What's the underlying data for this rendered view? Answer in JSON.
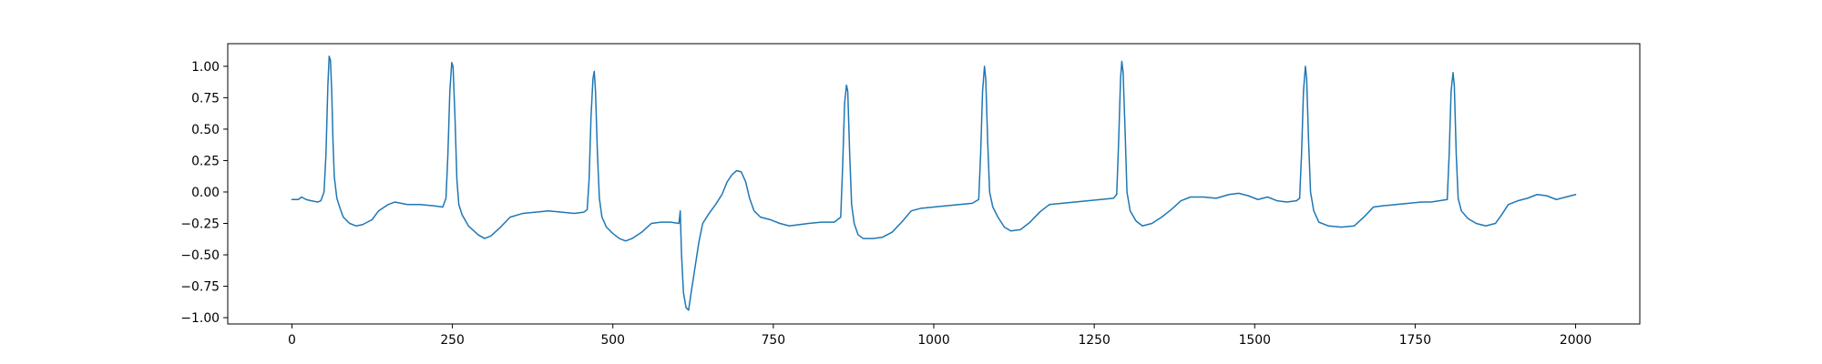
{
  "chart_data": {
    "type": "line",
    "title": "",
    "xlabel": "",
    "ylabel": "",
    "xlim": [
      -100,
      2100
    ],
    "ylim": [
      -1.05,
      1.18
    ],
    "grid": false,
    "legend": "none",
    "x_ticks": [
      0,
      250,
      500,
      750,
      1000,
      1250,
      1500,
      1750,
      2000
    ],
    "x_tick_labels": [
      "0",
      "250",
      "500",
      "750",
      "1000",
      "1250",
      "1500",
      "1750",
      "2000"
    ],
    "y_ticks": [
      1.0,
      0.75,
      0.5,
      0.25,
      0.0,
      -0.25,
      -0.5,
      -0.75,
      -1.0
    ],
    "y_tick_labels": [
      "1.00",
      "0.75",
      "0.50",
      "0.25",
      "0.00",
      "−0.25",
      "−0.50",
      "−0.75",
      "−1.00"
    ],
    "series": [
      {
        "color": "#1f77b4",
        "points": [
          [
            0,
            -0.06
          ],
          [
            10,
            -0.06
          ],
          [
            15,
            -0.04
          ],
          [
            22,
            -0.06
          ],
          [
            30,
            -0.07
          ],
          [
            40,
            -0.08
          ],
          [
            45,
            -0.07
          ],
          [
            50,
            0.0
          ],
          [
            53,
            0.3
          ],
          [
            56,
            0.85
          ],
          [
            58,
            1.08
          ],
          [
            60,
            1.05
          ],
          [
            62,
            0.8
          ],
          [
            64,
            0.4
          ],
          [
            66,
            0.12
          ],
          [
            70,
            -0.05
          ],
          [
            75,
            -0.13
          ],
          [
            80,
            -0.2
          ],
          [
            90,
            -0.25
          ],
          [
            100,
            -0.27
          ],
          [
            110,
            -0.26
          ],
          [
            125,
            -0.22
          ],
          [
            135,
            -0.15
          ],
          [
            150,
            -0.1
          ],
          [
            160,
            -0.08
          ],
          [
            180,
            -0.1
          ],
          [
            200,
            -0.1
          ],
          [
            220,
            -0.11
          ],
          [
            235,
            -0.12
          ],
          [
            240,
            -0.05
          ],
          [
            243,
            0.3
          ],
          [
            246,
            0.8
          ],
          [
            249,
            1.03
          ],
          [
            251,
            1.0
          ],
          [
            254,
            0.6
          ],
          [
            257,
            0.1
          ],
          [
            260,
            -0.1
          ],
          [
            265,
            -0.18
          ],
          [
            275,
            -0.27
          ],
          [
            290,
            -0.34
          ],
          [
            300,
            -0.37
          ],
          [
            310,
            -0.35
          ],
          [
            325,
            -0.28
          ],
          [
            340,
            -0.2
          ],
          [
            360,
            -0.17
          ],
          [
            380,
            -0.16
          ],
          [
            400,
            -0.15
          ],
          [
            420,
            -0.16
          ],
          [
            440,
            -0.17
          ],
          [
            455,
            -0.16
          ],
          [
            460,
            -0.14
          ],
          [
            463,
            0.1
          ],
          [
            466,
            0.6
          ],
          [
            469,
            0.9
          ],
          [
            471,
            0.96
          ],
          [
            473,
            0.8
          ],
          [
            476,
            0.3
          ],
          [
            479,
            -0.05
          ],
          [
            483,
            -0.2
          ],
          [
            490,
            -0.28
          ],
          [
            500,
            -0.33
          ],
          [
            510,
            -0.37
          ],
          [
            520,
            -0.39
          ],
          [
            530,
            -0.37
          ],
          [
            545,
            -0.32
          ],
          [
            560,
            -0.25
          ],
          [
            575,
            -0.24
          ],
          [
            590,
            -0.24
          ],
          [
            603,
            -0.25
          ],
          [
            605,
            -0.15
          ],
          [
            607,
            -0.5
          ],
          [
            610,
            -0.8
          ],
          [
            614,
            -0.92
          ],
          [
            618,
            -0.94
          ],
          [
            622,
            -0.8
          ],
          [
            628,
            -0.6
          ],
          [
            634,
            -0.4
          ],
          [
            640,
            -0.25
          ],
          [
            650,
            -0.17
          ],
          [
            660,
            -0.1
          ],
          [
            670,
            -0.02
          ],
          [
            678,
            0.08
          ],
          [
            686,
            0.14
          ],
          [
            693,
            0.17
          ],
          [
            700,
            0.16
          ],
          [
            707,
            0.08
          ],
          [
            713,
            -0.05
          ],
          [
            720,
            -0.15
          ],
          [
            730,
            -0.2
          ],
          [
            745,
            -0.22
          ],
          [
            760,
            -0.25
          ],
          [
            775,
            -0.27
          ],
          [
            790,
            -0.26
          ],
          [
            805,
            -0.25
          ],
          [
            825,
            -0.24
          ],
          [
            845,
            -0.24
          ],
          [
            855,
            -0.2
          ],
          [
            858,
            0.2
          ],
          [
            861,
            0.7
          ],
          [
            864,
            0.85
          ],
          [
            866,
            0.8
          ],
          [
            869,
            0.3
          ],
          [
            872,
            -0.1
          ],
          [
            876,
            -0.25
          ],
          [
            882,
            -0.34
          ],
          [
            890,
            -0.37
          ],
          [
            905,
            -0.37
          ],
          [
            920,
            -0.36
          ],
          [
            935,
            -0.32
          ],
          [
            950,
            -0.24
          ],
          [
            965,
            -0.15
          ],
          [
            980,
            -0.13
          ],
          [
            1000,
            -0.12
          ],
          [
            1020,
            -0.11
          ],
          [
            1040,
            -0.1
          ],
          [
            1060,
            -0.09
          ],
          [
            1070,
            -0.06
          ],
          [
            1073,
            0.3
          ],
          [
            1076,
            0.8
          ],
          [
            1079,
            1.0
          ],
          [
            1081,
            0.9
          ],
          [
            1084,
            0.4
          ],
          [
            1087,
            0.0
          ],
          [
            1092,
            -0.12
          ],
          [
            1100,
            -0.2
          ],
          [
            1110,
            -0.28
          ],
          [
            1120,
            -0.31
          ],
          [
            1135,
            -0.3
          ],
          [
            1150,
            -0.24
          ],
          [
            1165,
            -0.16
          ],
          [
            1180,
            -0.1
          ],
          [
            1200,
            -0.09
          ],
          [
            1220,
            -0.08
          ],
          [
            1240,
            -0.07
          ],
          [
            1260,
            -0.06
          ],
          [
            1280,
            -0.05
          ],
          [
            1285,
            -0.02
          ],
          [
            1288,
            0.4
          ],
          [
            1291,
            0.9
          ],
          [
            1293,
            1.04
          ],
          [
            1295,
            0.95
          ],
          [
            1298,
            0.5
          ],
          [
            1301,
            0.0
          ],
          [
            1306,
            -0.15
          ],
          [
            1315,
            -0.23
          ],
          [
            1325,
            -0.27
          ],
          [
            1340,
            -0.25
          ],
          [
            1355,
            -0.2
          ],
          [
            1370,
            -0.14
          ],
          [
            1385,
            -0.07
          ],
          [
            1400,
            -0.04
          ],
          [
            1420,
            -0.04
          ],
          [
            1440,
            -0.05
          ],
          [
            1460,
            -0.02
          ],
          [
            1475,
            -0.01
          ],
          [
            1490,
            -0.03
          ],
          [
            1505,
            -0.06
          ],
          [
            1520,
            -0.04
          ],
          [
            1535,
            -0.07
          ],
          [
            1550,
            -0.08
          ],
          [
            1565,
            -0.07
          ],
          [
            1570,
            -0.05
          ],
          [
            1573,
            0.3
          ],
          [
            1576,
            0.8
          ],
          [
            1579,
            1.0
          ],
          [
            1581,
            0.9
          ],
          [
            1584,
            0.4
          ],
          [
            1587,
            0.0
          ],
          [
            1592,
            -0.15
          ],
          [
            1600,
            -0.24
          ],
          [
            1615,
            -0.27
          ],
          [
            1635,
            -0.28
          ],
          [
            1655,
            -0.27
          ],
          [
            1670,
            -0.2
          ],
          [
            1685,
            -0.12
          ],
          [
            1700,
            -0.11
          ],
          [
            1720,
            -0.1
          ],
          [
            1740,
            -0.09
          ],
          [
            1760,
            -0.08
          ],
          [
            1775,
            -0.08
          ],
          [
            1800,
            -0.06
          ],
          [
            1803,
            0.3
          ],
          [
            1806,
            0.8
          ],
          [
            1809,
            0.95
          ],
          [
            1811,
            0.85
          ],
          [
            1814,
            0.3
          ],
          [
            1817,
            -0.05
          ],
          [
            1822,
            -0.15
          ],
          [
            1832,
            -0.21
          ],
          [
            1845,
            -0.25
          ],
          [
            1860,
            -0.27
          ],
          [
            1875,
            -0.25
          ],
          [
            1885,
            -0.18
          ],
          [
            1895,
            -0.1
          ],
          [
            1910,
            -0.07
          ],
          [
            1925,
            -0.05
          ],
          [
            1940,
            -0.02
          ],
          [
            1955,
            -0.03
          ],
          [
            1970,
            -0.06
          ],
          [
            1985,
            -0.04
          ],
          [
            2000,
            -0.02
          ]
        ]
      }
    ]
  }
}
